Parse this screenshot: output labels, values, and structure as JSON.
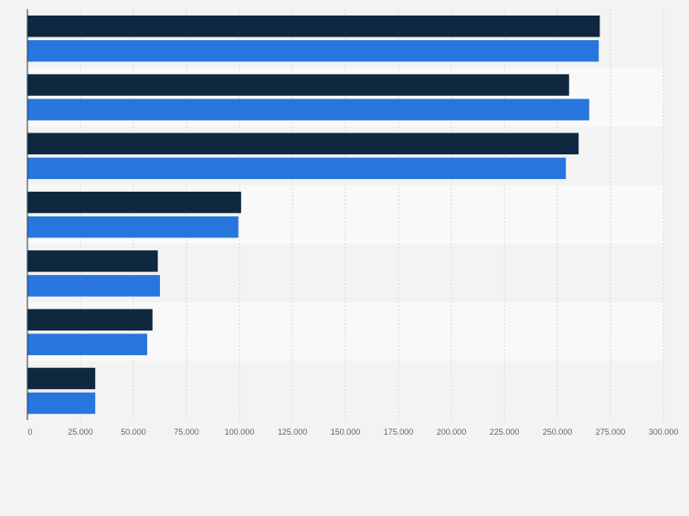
{
  "chart_data": {
    "type": "bar",
    "orientation": "horizontal",
    "categories": [
      "",
      "",
      "",
      "",
      "",
      "",
      ""
    ],
    "series": [
      {
        "values": [
          270000,
          255500,
          260000,
          100800,
          61500,
          59000,
          32000
        ]
      },
      {
        "values": [
          269500,
          265000,
          254000,
          99500,
          62500,
          56500,
          32000
        ]
      }
    ],
    "xlim": [
      0,
      300000
    ],
    "x_ticks": [
      0,
      25000,
      50000,
      75000,
      100000,
      125000,
      150000,
      175000,
      200000,
      225000,
      250000,
      275000,
      300000
    ],
    "x_tick_labels": [
      "0",
      "25.000",
      "50.000",
      "75.000",
      "100.000",
      "125.000",
      "150.000",
      "175.000",
      "200.000",
      "225.000",
      "250.000",
      "275.000",
      "300.000"
    ],
    "grid": true,
    "legend": "none",
    "colors": {
      "series": [
        "#0f2840",
        "#2876dd"
      ],
      "band_even": "#f3f3f3",
      "band_odd": "#f9f9f9",
      "grid": "#d8d8d8",
      "axis": "#2a3a4a",
      "tick_label": "#666666"
    }
  }
}
